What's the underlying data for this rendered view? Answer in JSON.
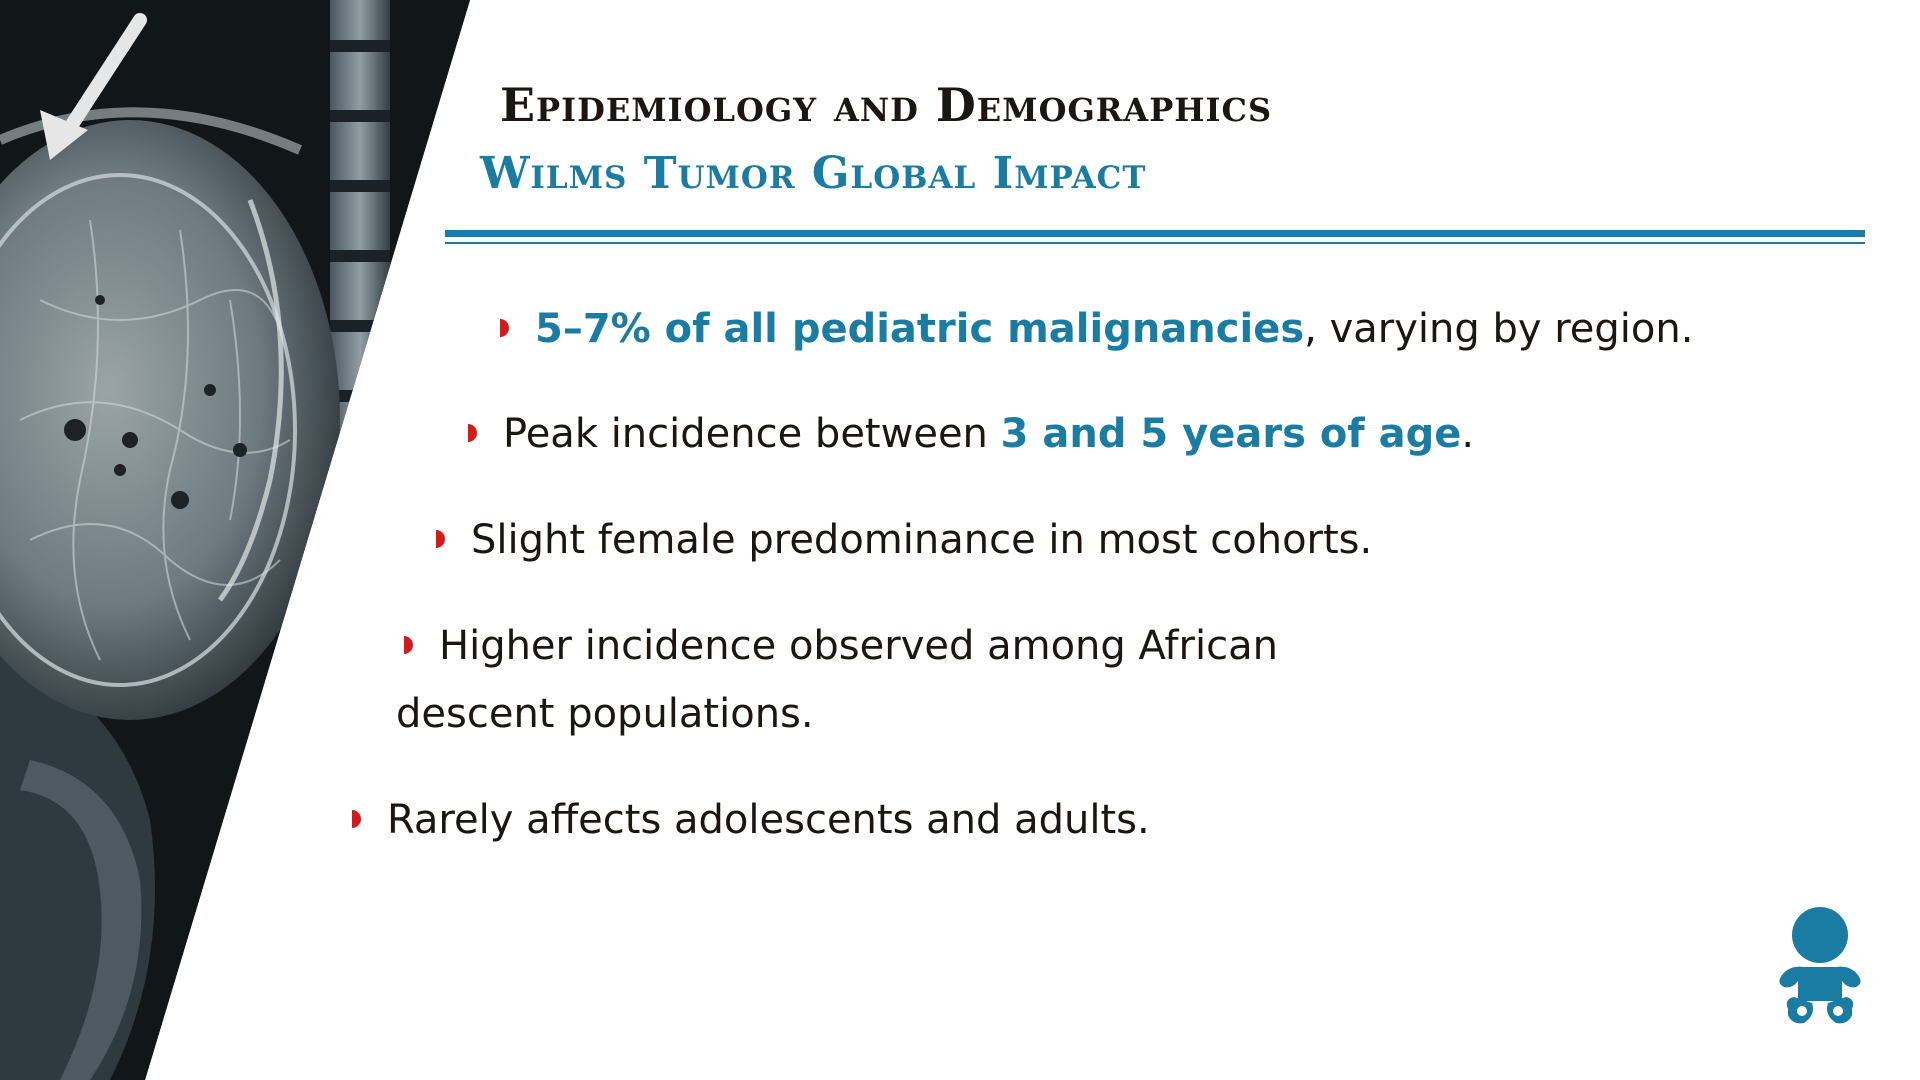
{
  "header": {
    "title": "Epidemiology and Demographics",
    "subtitle": "Wilms Tumor Global Impact"
  },
  "bullets": [
    {
      "highlight": "5–7% of all pediatric malignancies",
      "rest": ", varying by region."
    },
    {
      "pre": "Peak incidence between ",
      "highlight": "3 and 5 years of age",
      "post": "."
    },
    {
      "text": "Slight female predominance in most cohorts."
    },
    {
      "line1": "Higher incidence observed among African",
      "line2": "descent populations."
    },
    {
      "text": "Rarely affects adolescents and adults."
    }
  ],
  "colors": {
    "accent": "#1b7ca3",
    "bullet_marker": "#d7191c",
    "title_text": "#1b1612",
    "body_text": "#1b1612"
  },
  "icons": {
    "image_arrow": "arrow-pointer-icon",
    "bullet": "half-circle-bullet-icon",
    "corner": "baby-icon"
  }
}
